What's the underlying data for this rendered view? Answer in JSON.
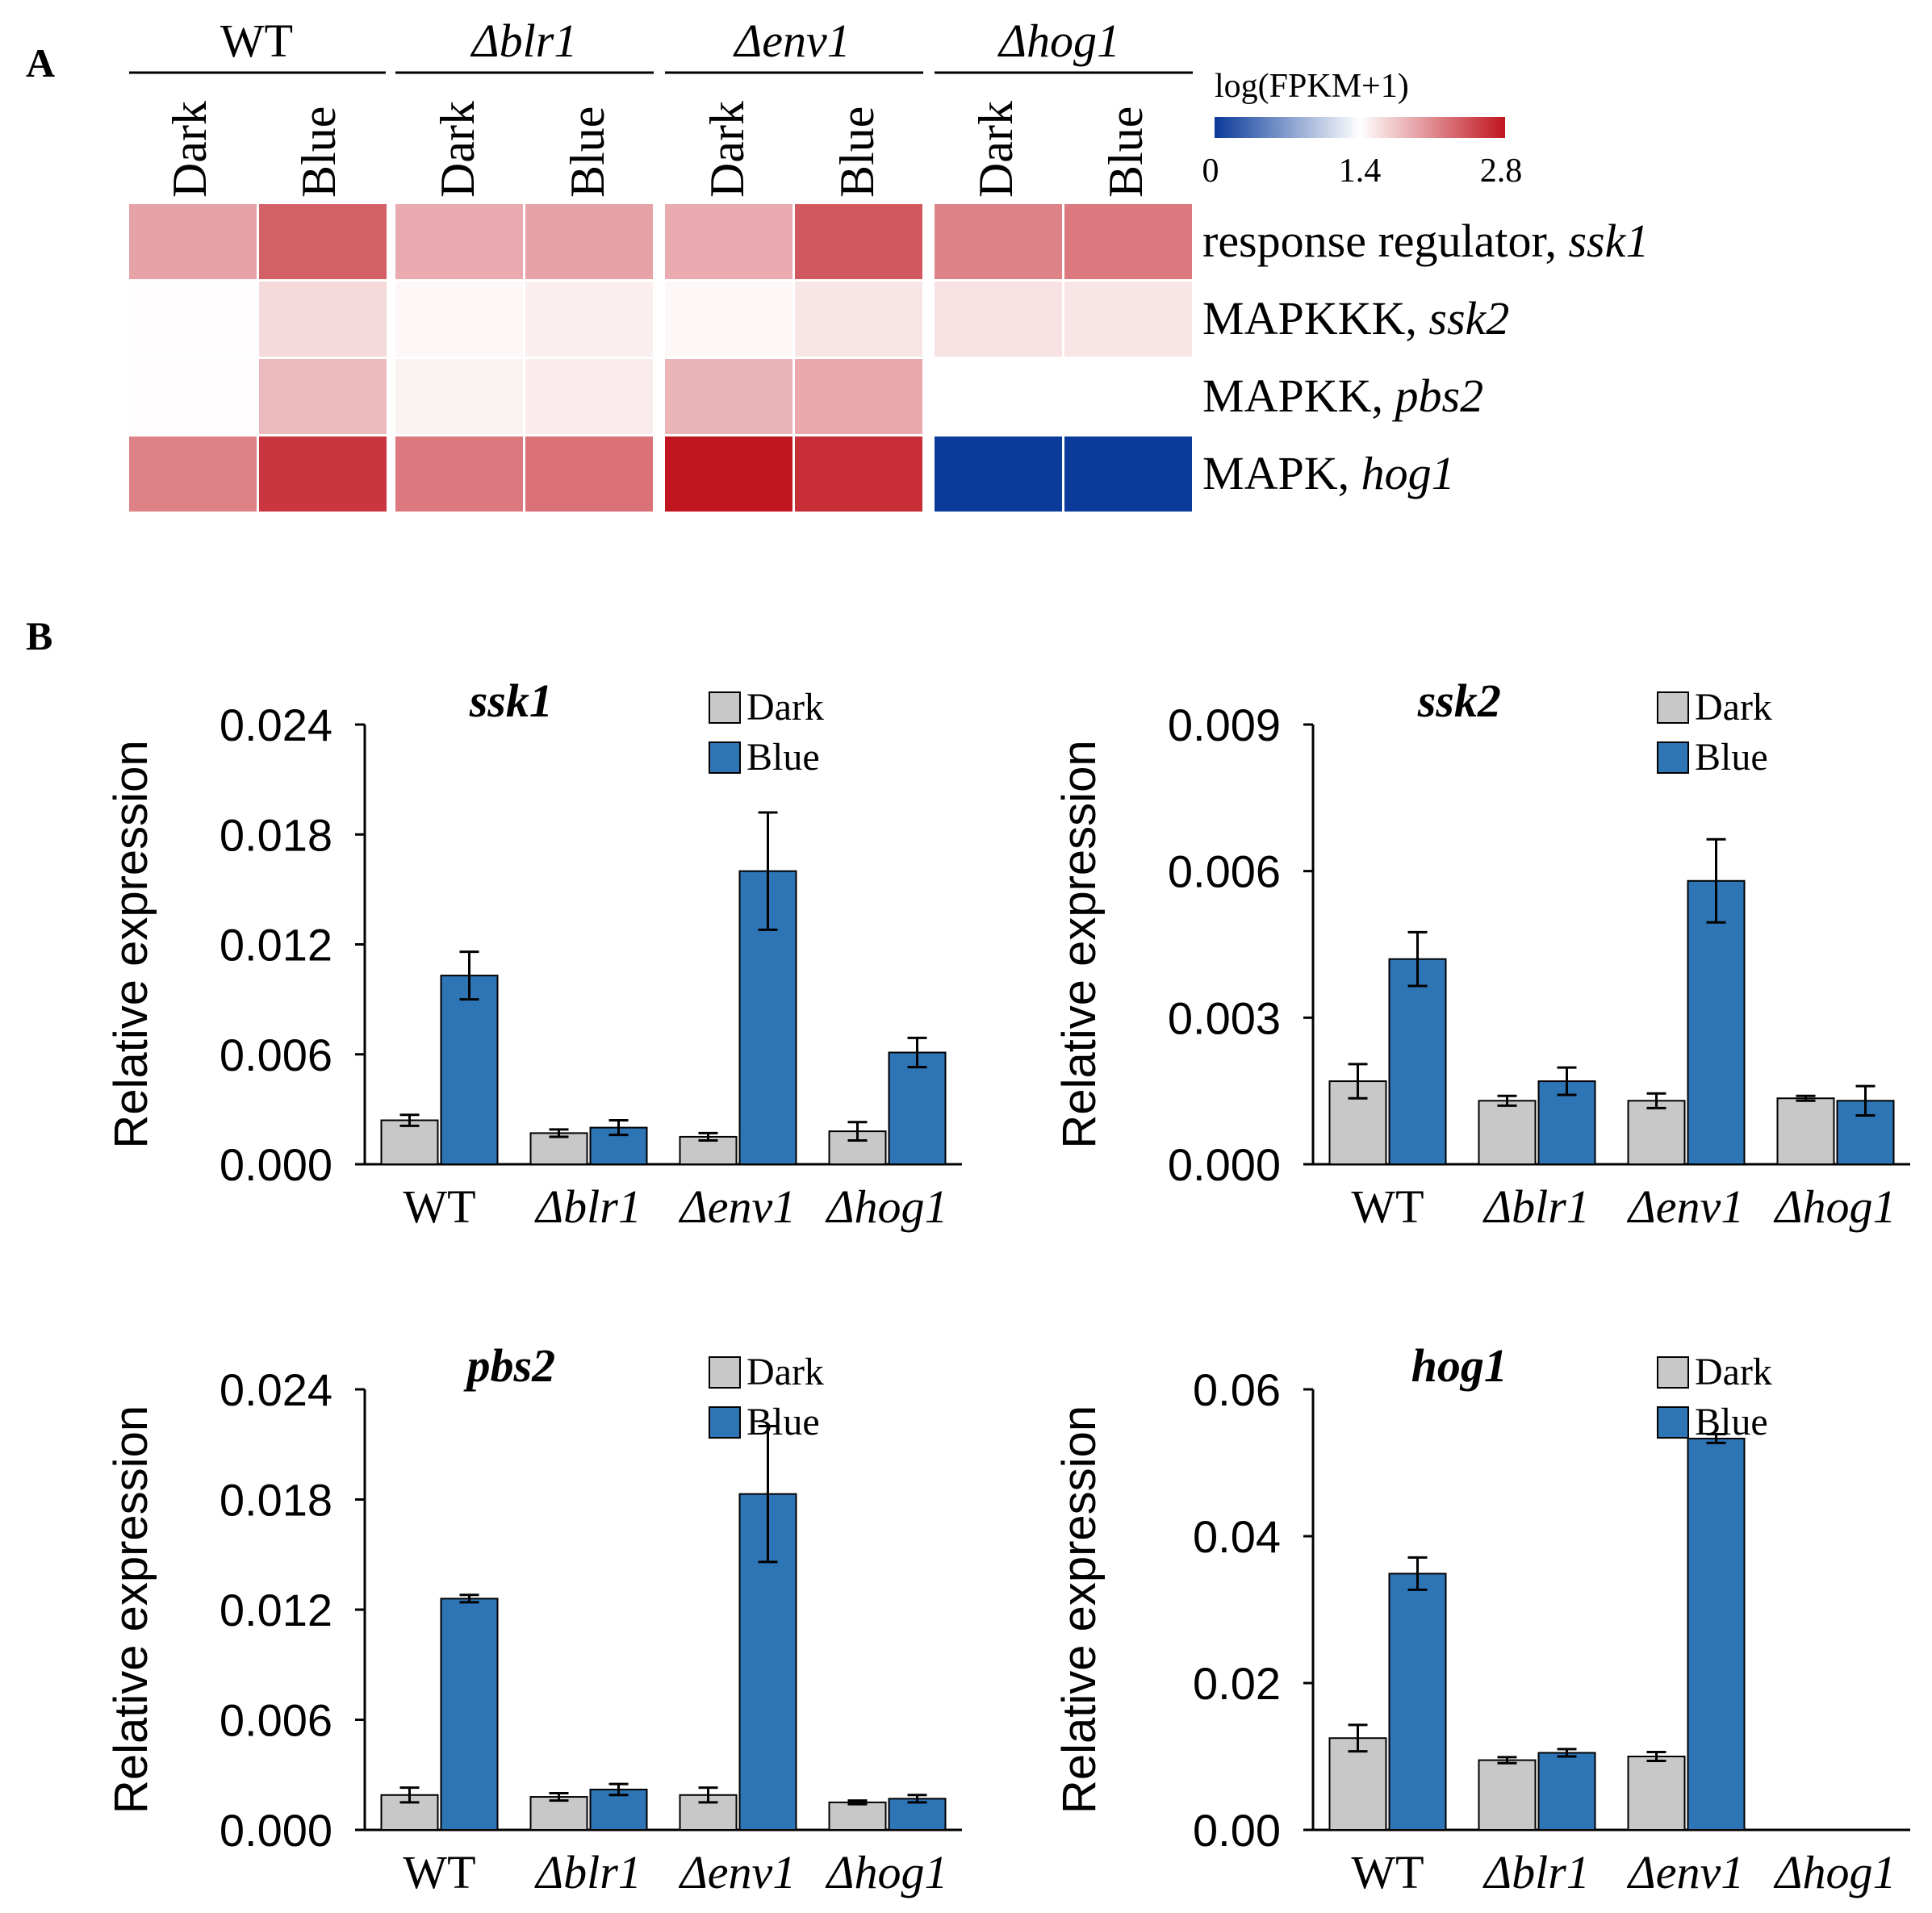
{
  "figure": {
    "panel_a_label": "A",
    "panel_b_label": "B"
  },
  "heatmap": {
    "groups": [
      {
        "label": "WT",
        "italic": false
      },
      {
        "label": "Δblr1",
        "italic": true
      },
      {
        "label": "Δenv1",
        "italic": true
      },
      {
        "label": "Δhog1",
        "italic": true
      }
    ],
    "conditions": [
      "Dark",
      "Blue"
    ],
    "rows": [
      {
        "prefix": "response regulator, ",
        "gene": "ssk1"
      },
      {
        "prefix": "MAPKKK, ",
        "gene": "ssk2"
      },
      {
        "prefix": "MAPKK, ",
        "gene": "pbs2"
      },
      {
        "prefix": "MAPK, ",
        "gene": "hog1"
      }
    ],
    "values": [
      [
        1.95,
        2.35,
        1.9,
        1.95,
        1.9,
        2.4,
        2.15,
        2.2
      ],
      [
        1.42,
        1.62,
        1.45,
        1.5,
        1.45,
        1.55,
        1.58,
        1.55
      ],
      [
        1.42,
        1.82,
        1.48,
        1.52,
        1.85,
        1.92,
        1.4,
        1.4
      ],
      [
        2.15,
        2.6,
        2.2,
        2.25,
        2.8,
        2.65,
        0.0,
        0.0
      ]
    ],
    "colorbar": {
      "title": "log(FPKM+1)",
      "min": 0,
      "mid": 1.4,
      "max": 2.8,
      "tick_labels": [
        "0",
        "1.4",
        "2.8"
      ],
      "color_low": "#0a3a9a",
      "color_mid": "#ffffff",
      "color_high": "#c0151f"
    }
  },
  "colors": {
    "dark_bar": "#c8c8c8",
    "blue_bar": "#2e75b6",
    "axis": "#000000"
  },
  "chart_data": [
    {
      "type": "bar",
      "title": "ssk1",
      "ylabel": "Relative expression",
      "xlabel": "",
      "categories": [
        "WT",
        "Δblr1",
        "Δenv1",
        "Δhog1"
      ],
      "ylim": [
        0,
        0.024
      ],
      "yticks": [
        0.0,
        0.006,
        0.012,
        0.018,
        0.024
      ],
      "ytick_labels": [
        "0.000",
        "0.006",
        "0.012",
        "0.018",
        "0.024"
      ],
      "legend": "top-right",
      "series": [
        {
          "name": "Dark",
          "values": [
            0.0024,
            0.0017,
            0.0015,
            0.0018
          ],
          "errors": [
            0.0003,
            0.0002,
            0.0002,
            0.0005
          ]
        },
        {
          "name": "Blue",
          "values": [
            0.0103,
            0.002,
            0.016,
            0.0061
          ],
          "errors": [
            0.0013,
            0.0004,
            0.0032,
            0.0008
          ]
        }
      ]
    },
    {
      "type": "bar",
      "title": "ssk2",
      "ylabel": "Relative expression",
      "xlabel": "",
      "categories": [
        "WT",
        "Δblr1",
        "Δenv1",
        "Δhog1"
      ],
      "ylim": [
        0,
        0.009
      ],
      "yticks": [
        0.0,
        0.003,
        0.006,
        0.009
      ],
      "ytick_labels": [
        "0.000",
        "0.003",
        "0.006",
        "0.009"
      ],
      "legend": "top-right",
      "series": [
        {
          "name": "Dark",
          "values": [
            0.0017,
            0.0013,
            0.0013,
            0.00135
          ],
          "errors": [
            0.00035,
            0.0001,
            0.00015,
            5e-05
          ]
        },
        {
          "name": "Blue",
          "values": [
            0.0042,
            0.0017,
            0.0058,
            0.0013
          ],
          "errors": [
            0.00055,
            0.00028,
            0.00085,
            0.0003
          ]
        }
      ]
    },
    {
      "type": "bar",
      "title": "pbs2",
      "ylabel": "Relative expression",
      "xlabel": "",
      "categories": [
        "WT",
        "Δblr1",
        "Δenv1",
        "Δhog1"
      ],
      "ylim": [
        0,
        0.024
      ],
      "yticks": [
        0.0,
        0.006,
        0.012,
        0.018,
        0.024
      ],
      "ytick_labels": [
        "0.000",
        "0.006",
        "0.012",
        "0.018",
        "0.024"
      ],
      "legend": "top-right",
      "series": [
        {
          "name": "Dark",
          "values": [
            0.0019,
            0.0018,
            0.0019,
            0.0015
          ],
          "errors": [
            0.0004,
            0.0002,
            0.0004,
            0.0001
          ]
        },
        {
          "name": "Blue",
          "values": [
            0.0126,
            0.0022,
            0.0183,
            0.0017
          ],
          "errors": [
            0.0002,
            0.0003,
            0.0037,
            0.0002
          ]
        }
      ]
    },
    {
      "type": "bar",
      "title": "hog1",
      "ylabel": "Relative expression",
      "xlabel": "",
      "categories": [
        "WT",
        "Δblr1",
        "Δenv1",
        "Δhog1"
      ],
      "ylim": [
        0,
        0.06
      ],
      "yticks": [
        0.0,
        0.02,
        0.04,
        0.06
      ],
      "ytick_labels": [
        "0.00",
        "0.02",
        "0.04",
        "0.06"
      ],
      "legend": "top-right",
      "series": [
        {
          "name": "Dark",
          "values": [
            0.0125,
            0.0095,
            0.01,
            null
          ],
          "errors": [
            0.0018,
            0.0004,
            0.0006,
            null
          ]
        },
        {
          "name": "Blue",
          "values": [
            0.0349,
            0.0105,
            0.0533,
            null
          ],
          "errors": [
            0.0022,
            0.0005,
            0.0006,
            null
          ]
        }
      ]
    }
  ]
}
